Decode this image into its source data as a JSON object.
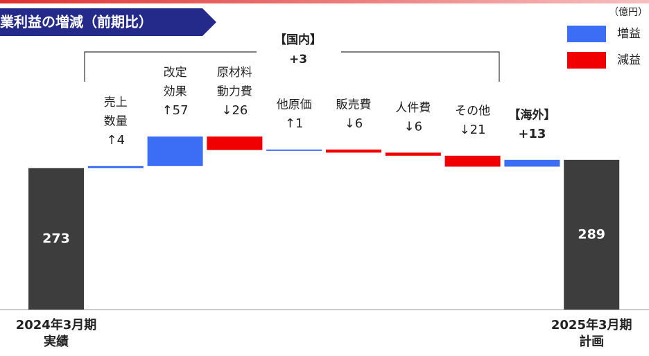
{
  "chart_data": {
    "type": "waterfall",
    "title": "業利益の増減（前期比）",
    "unit": "（億円）",
    "legend": [
      {
        "name": "増益",
        "color": "#3b6ef4"
      },
      {
        "name": "減益",
        "color": "#f00000"
      }
    ],
    "total_color": "#3d3d3d",
    "categories": [
      [
        "2024年3月期",
        "実績"
      ],
      [
        "売上",
        "数量"
      ],
      [
        "改定",
        "効果"
      ],
      [
        "原材料",
        "動力費"
      ],
      [
        "他原価"
      ],
      [
        "販売費"
      ],
      [
        "人件費"
      ],
      [
        "その他"
      ],
      [
        "【海外】"
      ],
      [
        "2025年3月期",
        "計画"
      ]
    ],
    "kinds": [
      "total",
      "delta",
      "delta",
      "delta",
      "delta",
      "delta",
      "delta",
      "delta",
      "delta",
      "total"
    ],
    "values": [
      273,
      4,
      57,
      -26,
      1,
      -6,
      -6,
      -21,
      13,
      289
    ],
    "value_labels": [
      "273",
      "↑4",
      "↑57",
      "↓26",
      "↑1",
      "↓6",
      "↓6",
      "↓21",
      "+13",
      "289"
    ],
    "annotations": [
      {
        "label": "【国内】",
        "value_label": "+3"
      }
    ]
  }
}
